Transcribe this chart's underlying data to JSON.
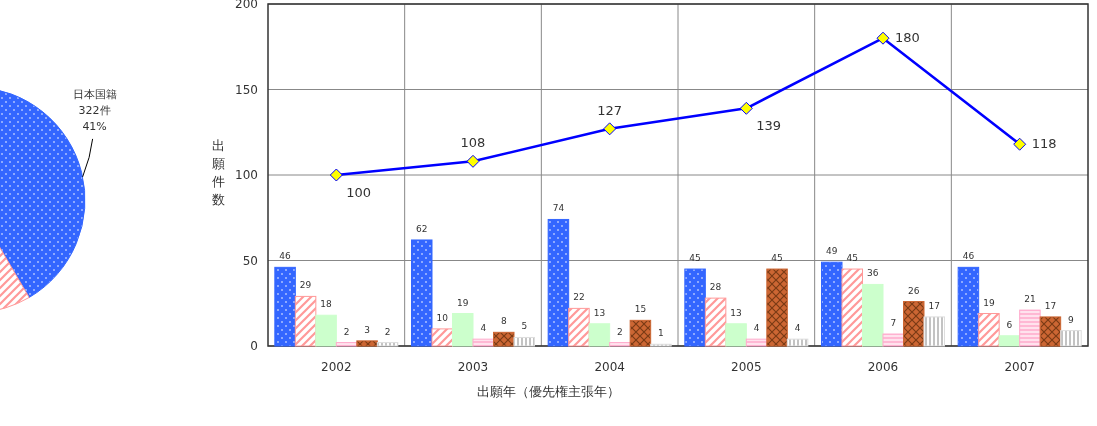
{
  "chart_data": [
    {
      "type": "pie",
      "categories": [
        "日本国籍",
        null
      ],
      "values": [
        41,
        59
      ],
      "colors": [
        "#3366ff",
        "#ff9999"
      ],
      "value_labels": [
        "322件\n41%",
        null
      ]
    },
    {
      "type": "bar",
      "categories": [
        "2002",
        "2003",
        "2004",
        "2005",
        "2006",
        "2007"
      ],
      "xlabel": "出願年（優先権主張年）",
      "ylabel": "出願件数",
      "ylim": [
        0,
        200
      ],
      "yticks": [
        0,
        50,
        100,
        150,
        200
      ],
      "grid": true,
      "data_labels": true,
      "series": [
        {
          "color": "#3366ff",
          "values": [
            46,
            62,
            74,
            45,
            49,
            46
          ]
        },
        {
          "color": "#ff9999",
          "values": [
            29,
            10,
            22,
            28,
            45,
            19
          ]
        },
        {
          "color": "#ccffcc",
          "values": [
            18,
            19,
            13,
            13,
            36,
            6
          ]
        },
        {
          "color": "#ffaacc",
          "values": [
            2,
            4,
            2,
            4,
            7,
            21
          ]
        },
        {
          "color": "#cc6633",
          "values": [
            3,
            8,
            15,
            45,
            26,
            17
          ]
        },
        {
          "color": "#dddddd",
          "values": [
            2,
            5,
            1,
            4,
            17,
            9
          ]
        },
        {
          "type": "line",
          "color": "#0000ff",
          "marker": "diamond",
          "values": [
            100,
            108,
            127,
            139,
            180,
            118
          ]
        }
      ]
    }
  ]
}
